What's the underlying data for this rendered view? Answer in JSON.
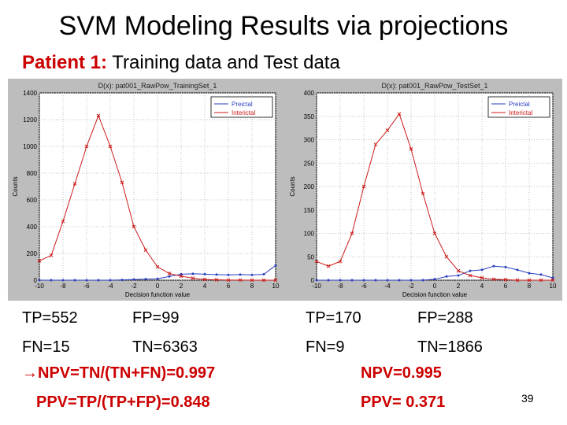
{
  "title": "SVM Modeling Results via projections",
  "subtitle": {
    "bold": "Patient 1:",
    "rest": " Training data and Test data"
  },
  "colors": {
    "accent": "#cc0000",
    "preictal": "#2a3fbf",
    "interictal": "#cc1a1a",
    "panel_bg": "#bdbdbd"
  },
  "charts": [
    {
      "type": "line",
      "title": "D(x): pat001_RawPow_TrainingSet_1",
      "xlabel": "Decision function value",
      "ylabel": "Counts",
      "xlim": [
        -10,
        10
      ],
      "ylim": [
        0,
        1400
      ],
      "x_ticks": [
        "-10",
        "-8",
        "-6",
        "-4",
        "-2",
        "0",
        "2",
        "4",
        "6",
        "8",
        "10"
      ],
      "y_ticks": [
        "0",
        "200",
        "400",
        "600",
        "800",
        "1000",
        "1200",
        "1400"
      ],
      "legend": [
        "Preictal",
        "Interictal"
      ],
      "legend_position": "top-right",
      "chart_data": {
        "type": "line",
        "x": [
          -10,
          -9,
          -8,
          -7,
          -6,
          -5,
          -4,
          -3,
          -2,
          -1,
          0,
          1,
          2,
          3,
          4,
          5,
          6,
          7,
          8,
          9,
          10
        ],
        "series": [
          {
            "name": "Preictal",
            "values": [
              0,
              0,
              0,
              0,
              0,
              0,
              0,
              2,
              5,
              8,
              10,
              28,
              45,
              48,
              45,
              42,
              40,
              42,
              40,
              44,
              110
            ]
          },
          {
            "name": "Interictal",
            "values": [
              145,
              185,
              440,
              720,
              1000,
              1230,
              1000,
              730,
              400,
              225,
              100,
              50,
              30,
              15,
              5,
              3,
              1,
              1,
              0,
              0,
              0
            ]
          }
        ]
      }
    },
    {
      "type": "line",
      "title": "D(x): pat001_RawPow_TestSet_1",
      "xlabel": "Decision function value",
      "ylabel": "Counts",
      "xlim": [
        -10,
        10
      ],
      "ylim": [
        0,
        400
      ],
      "x_ticks": [
        "-10",
        "-8",
        "-6",
        "-4",
        "-2",
        "0",
        "2",
        "4",
        "6",
        "8",
        "10"
      ],
      "y_ticks": [
        "0",
        "50",
        "100",
        "150",
        "200",
        "250",
        "300",
        "350",
        "400"
      ],
      "legend": [
        "Preictal",
        "Interictal"
      ],
      "legend_position": "top-right",
      "chart_data": {
        "type": "line",
        "x": [
          -10,
          -9,
          -8,
          -7,
          -6,
          -5,
          -4,
          -3,
          -2,
          -1,
          0,
          1,
          2,
          3,
          4,
          5,
          6,
          7,
          8,
          9,
          10
        ],
        "series": [
          {
            "name": "Preictal",
            "values": [
              0,
              0,
              0,
              0,
              0,
              0,
              0,
              0,
              0,
              0,
              2,
              8,
              10,
              20,
              22,
              30,
              28,
              22,
              15,
              12,
              5
            ]
          },
          {
            "name": "Interictal",
            "values": [
              40,
              30,
              40,
              100,
              200,
              290,
              320,
              355,
              280,
              185,
              100,
              50,
              20,
              10,
              5,
              2,
              1,
              0,
              0,
              0,
              0
            ]
          }
        ]
      }
    }
  ],
  "train": {
    "tp": "TP=552",
    "fp": "FP=99",
    "fn": "FN=15",
    "tn": "TN=6363",
    "npv": "→NPV=TN/(TN+FN)=0.997",
    "ppv": "PPV=TP/(TP+FP)=0.848"
  },
  "test": {
    "tp": "TP=170",
    "fp": "FP=288",
    "fn": "FN=9",
    "tn": "TN=1866",
    "npv": "NPV=0.995",
    "ppv": "PPV= 0.371"
  },
  "slide_number": "39"
}
